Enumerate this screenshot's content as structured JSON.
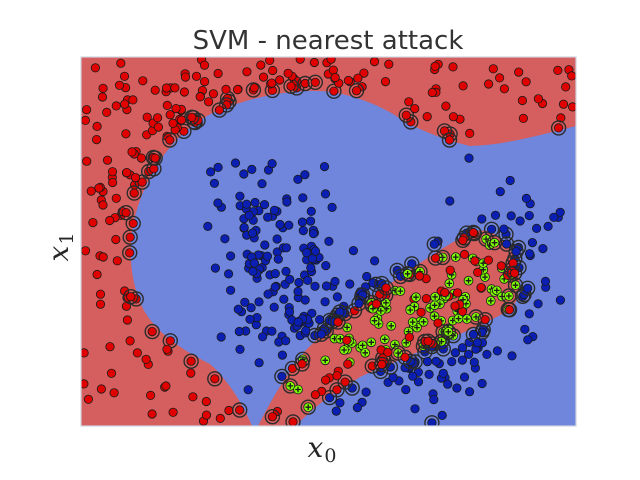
{
  "chart_data": {
    "type": "scatter",
    "title": "SVM - nearest attack",
    "xlabel": {
      "base": "x",
      "sub": "0"
    },
    "ylabel": {
      "base": "x",
      "sub": "1"
    },
    "xlim": [
      -1.5,
      2.5
    ],
    "ylim": [
      -1.0,
      1.5
    ],
    "grid": false,
    "legend": "none",
    "colors": {
      "region_red": "#d55e5e",
      "region_blue": "#6f86dc",
      "class0_point": "#e10000",
      "class1_point": "#0b1fb3",
      "attack_marker": "#7fff00",
      "point_edge": "#1a1a1a",
      "ring": "#2b2b2b"
    }
  }
}
